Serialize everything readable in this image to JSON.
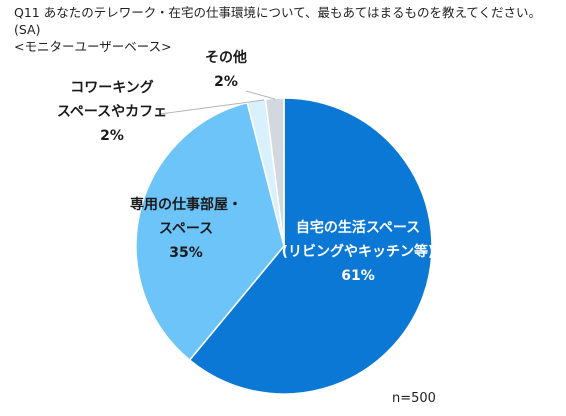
{
  "title": {
    "line1": "Q11 あなたのテレワーク・在宅の仕事環境について、最もあてはまるものを教えてください。(SA)",
    "line2": "<モニターユーザーベース>"
  },
  "sample_size": "n=500",
  "chart_data": {
    "type": "pie",
    "title": "Q11 あなたのテレワーク・在宅の仕事環境について、最もあてはまるものを教えてください。(SA)",
    "subtitle": "<モニターユーザーベース>",
    "start": "12 o'clock",
    "direction": "clockwise",
    "slices": [
      {
        "label_lines": [
          "自宅の生活スペース",
          "(リビングやキッチン等)",
          "61%"
        ],
        "value": 61,
        "color": "#0b78d6",
        "label_color": "#ffffff"
      },
      {
        "label_lines": [
          "専用の仕事部屋・",
          "スペース",
          "35%"
        ],
        "value": 35,
        "color": "#6cc4f8",
        "label_color": "#1a1a1a"
      },
      {
        "label_lines": [
          "コワーキング",
          "スペースやカフェ",
          "2%"
        ],
        "value": 2,
        "color": "#d8f1fd",
        "label_color": "#1a1a1a"
      },
      {
        "label_lines": [
          "その他",
          "2%"
        ],
        "value": 2,
        "color": "#d3d7de",
        "label_color": "#1a1a1a"
      }
    ]
  }
}
